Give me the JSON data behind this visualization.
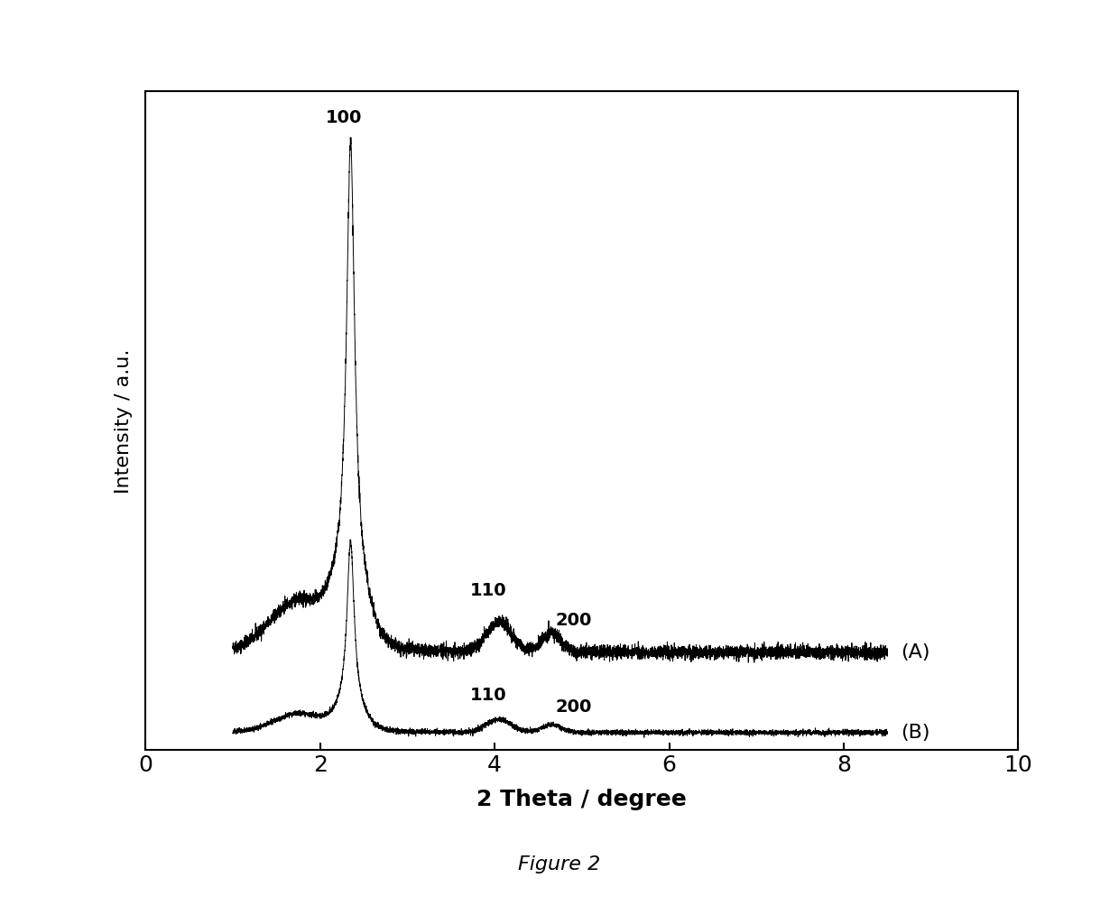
{
  "xlabel": "2 Theta / degree",
  "ylabel": "Intensity / a.u.",
  "xlim": [
    0,
    10
  ],
  "ylim": [
    0,
    1
  ],
  "xticks": [
    0,
    2,
    4,
    6,
    8,
    10
  ],
  "figure_caption": "Figure 2",
  "line_color": "#000000",
  "background_color": "#ffffff",
  "label_A": "(A)",
  "label_B": "(B)",
  "peak_positions": {
    "p100": 2.35,
    "p110": 4.05,
    "p200": 4.65
  },
  "annotation_fontsize": 14,
  "label_fontsize": 16,
  "xlabel_fontsize": 18,
  "ylabel_fontsize": 16,
  "tick_fontsize": 18
}
